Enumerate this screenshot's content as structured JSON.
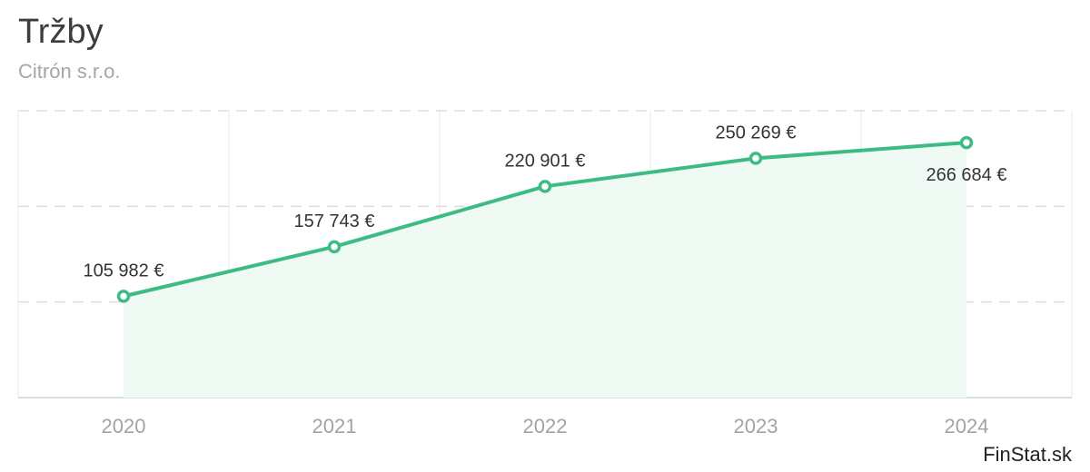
{
  "chart_data": {
    "type": "area",
    "title": "Tržby",
    "subtitle": "Citrón s.r.o.",
    "categories": [
      "2020",
      "2021",
      "2022",
      "2023",
      "2024"
    ],
    "series": [
      {
        "values": [
          105982,
          157743,
          220901,
          250269,
          266684
        ],
        "labels": [
          "105 982 €",
          "157 743 €",
          "220 901 €",
          "250 269 €",
          "266 684 €"
        ]
      }
    ],
    "ylim": [
      0,
      300000
    ],
    "grid": true,
    "legend": "none"
  },
  "colors": {
    "line": "#3dbb85",
    "fill": "#effaf5",
    "grid": "#dddddd"
  },
  "brand": "FinStat.sk"
}
